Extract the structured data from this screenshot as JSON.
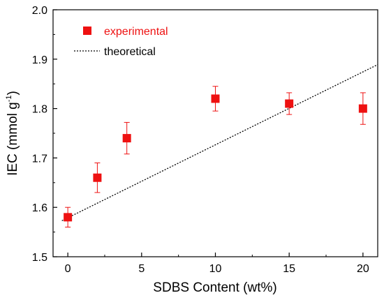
{
  "chart_data": {
    "type": "scatter",
    "title": "",
    "xlabel": "SDBS Content (wt%)",
    "ylabel_main": "IEC (mmol g",
    "ylabel_sup": "-1",
    "ylabel_close": ")",
    "xlim": [
      -1.0,
      21.0
    ],
    "ylim": [
      1.5,
      2.0
    ],
    "xticks": [
      0,
      5,
      10,
      15,
      20
    ],
    "xtick_labels": [
      "0",
      "5",
      "10",
      "15",
      "20"
    ],
    "yticks": [
      1.5,
      1.6,
      1.7,
      1.8,
      1.9,
      2.0
    ],
    "ytick_labels": [
      "1.5",
      "1.6",
      "1.7",
      "1.8",
      "1.9",
      "2.0"
    ],
    "grid": false,
    "legend_position": "top-left",
    "series": [
      {
        "name": "experimental",
        "kind": "scatter-with-errorbars",
        "marker": "square",
        "color": "#ee1111",
        "points": [
          {
            "x": 0,
            "y": 1.58,
            "err": 0.02
          },
          {
            "x": 2,
            "y": 1.66,
            "err": 0.03
          },
          {
            "x": 4,
            "y": 1.74,
            "err": 0.032
          },
          {
            "x": 10,
            "y": 1.82,
            "err": 0.025
          },
          {
            "x": 15,
            "y": 1.81,
            "err": 0.022
          },
          {
            "x": 20,
            "y": 1.8,
            "err": 0.032
          }
        ]
      },
      {
        "name": "theoretical",
        "kind": "line",
        "style": "dotted",
        "color": "#000000",
        "x": [
          -0.4,
          21.0
        ],
        "y": [
          1.573,
          1.889
        ]
      }
    ]
  }
}
